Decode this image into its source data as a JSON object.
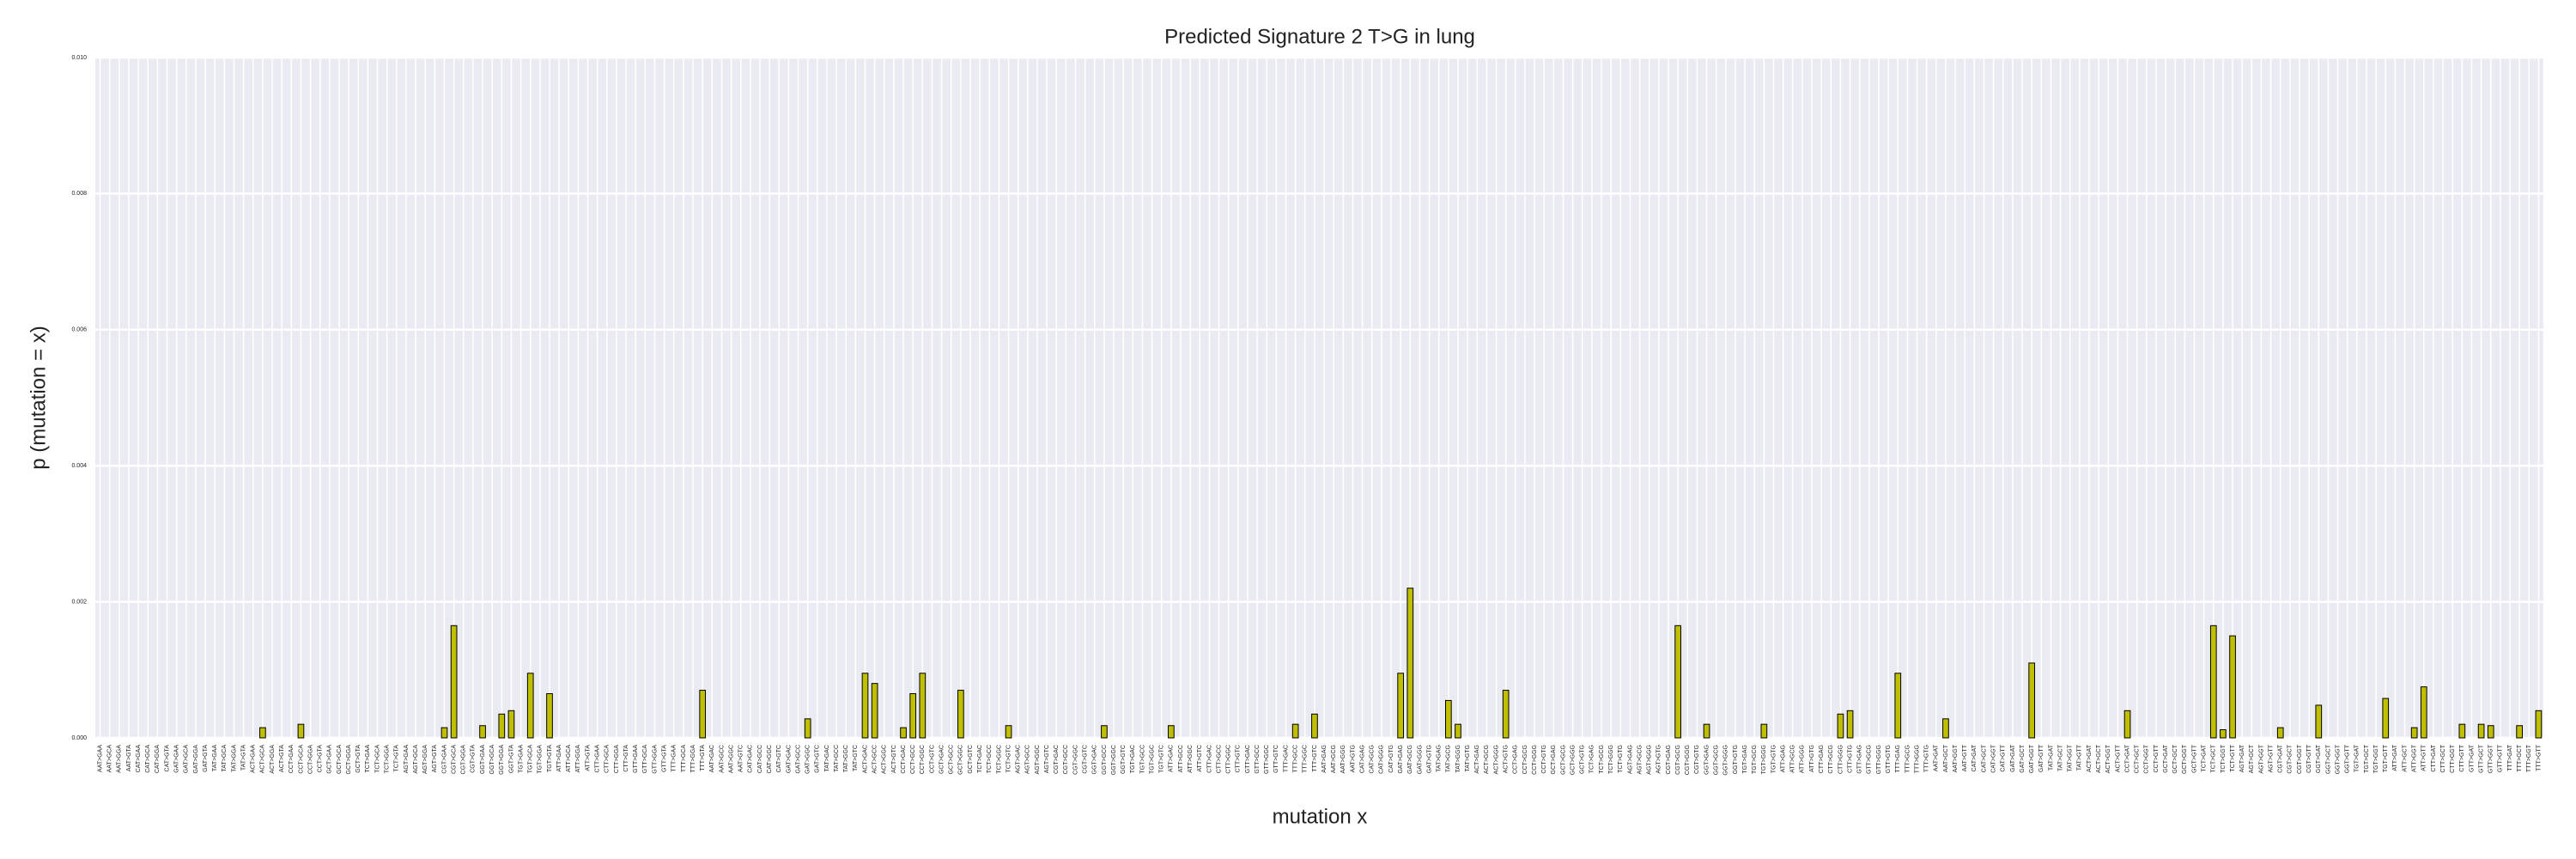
{
  "chart_data": {
    "type": "bar",
    "title": "Predicted Signature 2 T>G in lung",
    "xlabel": "mutation x",
    "ylabel": "p (mutation = x)",
    "color": "#bfbf00",
    "edgecolor": "#000000",
    "grid": true,
    "ylim": [
      0,
      0.01
    ],
    "yticks": [
      {
        "value": 0,
        "label": "0.000"
      },
      {
        "value": 0.002,
        "label": "0.002"
      },
      {
        "value": 0.004,
        "label": "0.004"
      },
      {
        "value": 0.006,
        "label": "0.006"
      },
      {
        "value": 0.008,
        "label": "0.008"
      },
      {
        "value": 0.01,
        "label": "0.010"
      }
    ],
    "categories": [
      "AAT>GAA",
      "AAT>GCA",
      "AAT>GGA",
      "AAT>GTA",
      "CAT>GAA",
      "CAT>GCA",
      "CAT>GGA",
      "CAT>GTA",
      "GAT>GAA",
      "GAT>GCA",
      "GAT>GGA",
      "GAT>GTA",
      "TAT>GAA",
      "TAT>GCA",
      "TAT>GGA",
      "TAT>GTA",
      "ACT>GAA",
      "ACT>GCA",
      "ACT>GGA",
      "ACT>GTA",
      "CCT>GAA",
      "CCT>GCA",
      "CCT>GGA",
      "CCT>GTA",
      "GCT>GAA",
      "GCT>GCA",
      "GCT>GGA",
      "GCT>GTA",
      "TCT>GAA",
      "TCT>GCA",
      "TCT>GGA",
      "TCT>GTA",
      "AGT>GAA",
      "AGT>GCA",
      "AGT>GGA",
      "AGT>GTA",
      "CGT>GAA",
      "CGT>GCA",
      "CGT>GGA",
      "CGT>GTA",
      "GGT>GAA",
      "GGT>GCA",
      "GGT>GGA",
      "GGT>GTA",
      "TGT>GAA",
      "TGT>GCA",
      "TGT>GGA",
      "TGT>GTA",
      "ATT>GAA",
      "ATT>GCA",
      "ATT>GGA",
      "ATT>GTA",
      "CTT>GAA",
      "CTT>GCA",
      "CTT>GGA",
      "CTT>GTA",
      "GTT>GAA",
      "GTT>GCA",
      "GTT>GGA",
      "GTT>GTA",
      "TTT>GAA",
      "TTT>GCA",
      "TTT>GGA",
      "TTT>GTA",
      "AAT>GAC",
      "AAT>GCC",
      "AAT>GGC",
      "AAT>GTC",
      "CAT>GAC",
      "CAT>GCC",
      "CAT>GGC",
      "CAT>GTC",
      "GAT>GAC",
      "GAT>GCC",
      "GAT>GGC",
      "GAT>GTC",
      "TAT>GAC",
      "TAT>GCC",
      "TAT>GGC",
      "TAT>GTC",
      "ACT>GAC",
      "ACT>GCC",
      "ACT>GGC",
      "ACT>GTC",
      "CCT>GAC",
      "CCT>GCC",
      "CCT>GGC",
      "CCT>GTC",
      "GCT>GAC",
      "GCT>GCC",
      "GCT>GGC",
      "GCT>GTC",
      "TCT>GAC",
      "TCT>GCC",
      "TCT>GGC",
      "TCT>GTC",
      "AGT>GAC",
      "AGT>GCC",
      "AGT>GGC",
      "AGT>GTC",
      "CGT>GAC",
      "CGT>GCC",
      "CGT>GGC",
      "CGT>GTC",
      "GGT>GAC",
      "GGT>GCC",
      "GGT>GGC",
      "GGT>GTC",
      "TGT>GAC",
      "TGT>GCC",
      "TGT>GGC",
      "TGT>GTC",
      "ATT>GAC",
      "ATT>GCC",
      "ATT>GGC",
      "ATT>GTC",
      "CTT>GAC",
      "CTT>GCC",
      "CTT>GGC",
      "CTT>GTC",
      "GTT>GAC",
      "GTT>GCC",
      "GTT>GGC",
      "GTT>GTC",
      "TTT>GAC",
      "TTT>GCC",
      "TTT>GGC",
      "TTT>GTC",
      "AAT>GAG",
      "AAT>GCG",
      "AAT>GGG",
      "AAT>GTG",
      "CAT>GAG",
      "CAT>GCG",
      "CAT>GGG",
      "CAT>GTG",
      "GAT>GAG",
      "GAT>GCG",
      "GAT>GGG",
      "GAT>GTG",
      "TAT>GAG",
      "TAT>GCG",
      "TAT>GGG",
      "TAT>GTG",
      "ACT>GAG",
      "ACT>GCG",
      "ACT>GGG",
      "ACT>GTG",
      "CCT>GAG",
      "CCT>GCG",
      "CCT>GGG",
      "CCT>GTG",
      "GCT>GAG",
      "GCT>GCG",
      "GCT>GGG",
      "GCT>GTG",
      "TCT>GAG",
      "TCT>GCG",
      "TCT>GGG",
      "TCT>GTG",
      "AGT>GAG",
      "AGT>GCG",
      "AGT>GGG",
      "AGT>GTG",
      "CGT>GAG",
      "CGT>GCG",
      "CGT>GGG",
      "CGT>GTG",
      "GGT>GAG",
      "GGT>GCG",
      "GGT>GGG",
      "GGT>GTG",
      "TGT>GAG",
      "TGT>GCG",
      "TGT>GGG",
      "TGT>GTG",
      "ATT>GAG",
      "ATT>GCG",
      "ATT>GGG",
      "ATT>GTG",
      "CTT>GAG",
      "CTT>GCG",
      "CTT>GGG",
      "CTT>GTG",
      "GTT>GAG",
      "GTT>GCG",
      "GTT>GGG",
      "GTT>GTG",
      "TTT>GAG",
      "TTT>GCG",
      "TTT>GGG",
      "TTT>GTG",
      "AAT>GAT",
      "AAT>GCT",
      "AAT>GGT",
      "AAT>GTT",
      "CAT>GAT",
      "CAT>GCT",
      "CAT>GGT",
      "CAT>GTT",
      "GAT>GAT",
      "GAT>GCT",
      "GAT>GGT",
      "GAT>GTT",
      "TAT>GAT",
      "TAT>GCT",
      "TAT>GGT",
      "TAT>GTT",
      "ACT>GAT",
      "ACT>GCT",
      "ACT>GGT",
      "ACT>GTT",
      "CCT>GAT",
      "CCT>GCT",
      "CCT>GGT",
      "CCT>GTT",
      "GCT>GAT",
      "GCT>GCT",
      "GCT>GGT",
      "GCT>GTT",
      "TCT>GAT",
      "TCT>GCT",
      "TCT>GGT",
      "TCT>GTT",
      "AGT>GAT",
      "AGT>GCT",
      "AGT>GGT",
      "AGT>GTT",
      "CGT>GAT",
      "CGT>GCT",
      "CGT>GGT",
      "CGT>GTT",
      "GGT>GAT",
      "GGT>GCT",
      "GGT>GGT",
      "GGT>GTT",
      "TGT>GAT",
      "TGT>GCT",
      "TGT>GGT",
      "TGT>GTT",
      "ATT>GAT",
      "ATT>GCT",
      "ATT>GGT",
      "ATT>GTT",
      "CTT>GAT",
      "CTT>GCT",
      "CTT>GGT",
      "CTT>GTT",
      "GTT>GAT",
      "GTT>GCT",
      "GTT>GGT",
      "GTT>GTT",
      "TTT>GAT",
      "TTT>GCT",
      "TTT>GGT",
      "TTT>GTT"
    ],
    "values": [
      0,
      0,
      0,
      0,
      0,
      0,
      0,
      0,
      0,
      0,
      0,
      0,
      0,
      0,
      0,
      0,
      0,
      0.00015,
      0,
      0,
      0,
      0.0002,
      0,
      0,
      0,
      0,
      0,
      0,
      0,
      0,
      0,
      0,
      0,
      0,
      0,
      0,
      0.00015,
      0.00165,
      0,
      0,
      0.00018,
      0,
      0.00035,
      0.0004,
      0,
      0.00095,
      0,
      0.00065,
      0,
      0,
      0,
      0,
      0,
      0,
      0,
      0,
      0,
      0,
      0,
      0,
      0,
      0,
      0,
      0.0007,
      0,
      0,
      0,
      0,
      0,
      0,
      0,
      0,
      0,
      0,
      0.00028,
      0,
      0,
      0,
      0,
      0,
      0.00095,
      0.0008,
      0,
      0,
      0.00015,
      0.00065,
      0.00095,
      0,
      0,
      0,
      0.0007,
      0,
      0,
      0,
      0,
      0.00018,
      0,
      0,
      0,
      0,
      0,
      0,
      0,
      0,
      0,
      0.00018,
      0,
      0,
      0,
      0,
      0,
      0,
      0.00018,
      0,
      0,
      0,
      0,
      0,
      0,
      0,
      0,
      0,
      0,
      0,
      0,
      0.0002,
      0,
      0.00035,
      0,
      0,
      0,
      0,
      0,
      0,
      0,
      0,
      0.00095,
      0.0022,
      0,
      0,
      0,
      0.00055,
      0.0002,
      0,
      0,
      0,
      0,
      0.0007,
      0,
      0,
      0,
      0,
      0,
      0,
      0,
      0,
      0,
      0,
      0,
      0,
      0,
      0,
      0,
      0,
      0,
      0.00165,
      0,
      0,
      0.0002,
      0,
      0,
      0,
      0,
      0,
      0.0002,
      0,
      0,
      0,
      0,
      0,
      0,
      0,
      0.00035,
      0.0004,
      0,
      0,
      0,
      0,
      0.00095,
      0,
      0,
      0,
      0,
      0.00028,
      0,
      0,
      0,
      0,
      0,
      0,
      0,
      0,
      0.0011,
      0,
      0,
      0,
      0,
      0,
      0,
      0,
      0,
      0,
      0.0004,
      0,
      0,
      0,
      0,
      0,
      0,
      0,
      0,
      0.00165,
      0.00012,
      0.0015,
      0,
      0,
      0,
      0,
      0.00015,
      0,
      0,
      0,
      0.00048,
      0,
      0,
      0,
      0,
      0,
      0,
      0.00058,
      0,
      0,
      0.00015,
      0.00075,
      0,
      0,
      0,
      0.0002,
      0,
      0.0002,
      0.00018,
      0,
      0,
      0.00018,
      0,
      0.0004
    ]
  }
}
